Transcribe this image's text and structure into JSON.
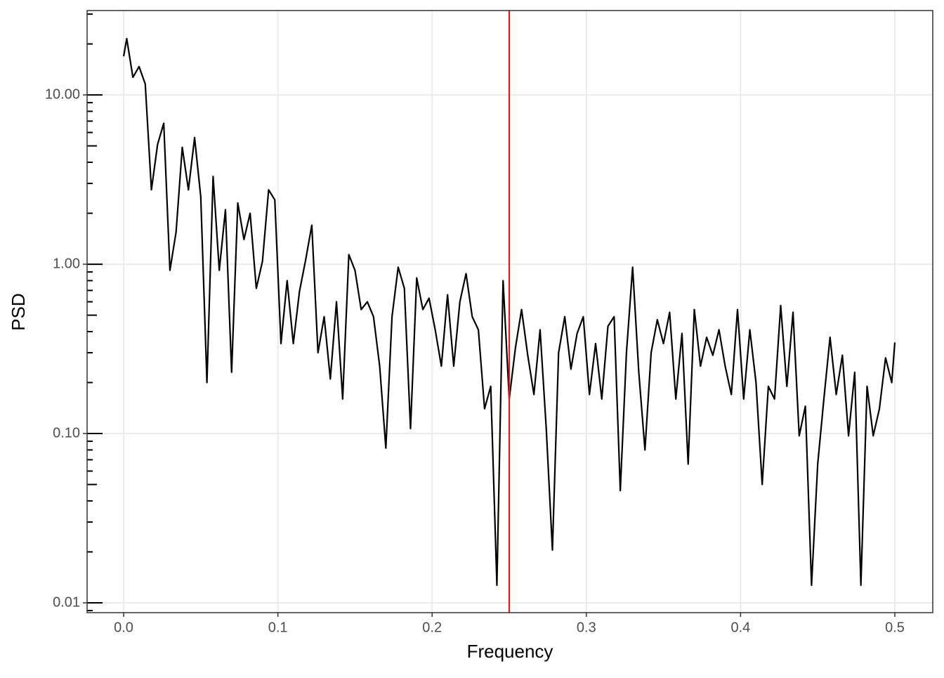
{
  "chart_data": {
    "type": "line",
    "x_label": "Frequency",
    "y_label": "PSD",
    "x": [
      0.0,
      0.002,
      0.006,
      0.01,
      0.014,
      0.018,
      0.022,
      0.026,
      0.03,
      0.034,
      0.038,
      0.042,
      0.046,
      0.05,
      0.054,
      0.058,
      0.062,
      0.066,
      0.07,
      0.074,
      0.078,
      0.082,
      0.086,
      0.09,
      0.094,
      0.098,
      0.102,
      0.106,
      0.11,
      0.114,
      0.118,
      0.122,
      0.126,
      0.13,
      0.134,
      0.138,
      0.142,
      0.146,
      0.15,
      0.154,
      0.158,
      0.162,
      0.166,
      0.17,
      0.174,
      0.178,
      0.182,
      0.186,
      0.19,
      0.194,
      0.198,
      0.202,
      0.206,
      0.21,
      0.214,
      0.218,
      0.222,
      0.226,
      0.23,
      0.234,
      0.238,
      0.242,
      0.246,
      0.25,
      0.254,
      0.258,
      0.262,
      0.266,
      0.27,
      0.274,
      0.278,
      0.282,
      0.286,
      0.29,
      0.294,
      0.298,
      0.302,
      0.306,
      0.31,
      0.314,
      0.318,
      0.322,
      0.326,
      0.33,
      0.334,
      0.338,
      0.342,
      0.346,
      0.35,
      0.354,
      0.358,
      0.362,
      0.366,
      0.37,
      0.374,
      0.378,
      0.382,
      0.386,
      0.39,
      0.394,
      0.398,
      0.402,
      0.406,
      0.41,
      0.414,
      0.418,
      0.422,
      0.426,
      0.43,
      0.434,
      0.438,
      0.442,
      0.446,
      0.45,
      0.454,
      0.458,
      0.462,
      0.466,
      0.47,
      0.474,
      0.478,
      0.482,
      0.486,
      0.49,
      0.494,
      0.498,
      0.5
    ],
    "series": [
      {
        "name": "PSD",
        "color": "#000000",
        "values": [
          16.9,
          21.5,
          12.7,
          14.7,
          11.6,
          2.75,
          5.1,
          6.8,
          0.92,
          1.55,
          4.9,
          2.75,
          5.6,
          2.5,
          0.2,
          3.3,
          0.92,
          2.1,
          0.23,
          2.3,
          1.4,
          2.0,
          0.72,
          1.04,
          2.75,
          2.4,
          0.34,
          0.8,
          0.34,
          0.69,
          1.06,
          1.7,
          0.3,
          0.49,
          0.21,
          0.6,
          0.16,
          1.14,
          0.92,
          0.54,
          0.6,
          0.49,
          0.25,
          0.082,
          0.49,
          0.96,
          0.72,
          0.107,
          0.83,
          0.54,
          0.63,
          0.41,
          0.25,
          0.66,
          0.25,
          0.6,
          0.88,
          0.49,
          0.41,
          0.14,
          0.19,
          0.0127,
          0.8,
          0.16,
          0.32,
          0.54,
          0.29,
          0.17,
          0.41,
          0.107,
          0.0205,
          0.3,
          0.49,
          0.24,
          0.39,
          0.49,
          0.17,
          0.34,
          0.16,
          0.43,
          0.49,
          0.046,
          0.3,
          0.96,
          0.23,
          0.08,
          0.3,
          0.47,
          0.34,
          0.52,
          0.16,
          0.39,
          0.066,
          0.54,
          0.25,
          0.37,
          0.29,
          0.41,
          0.25,
          0.17,
          0.54,
          0.16,
          0.41,
          0.2,
          0.05,
          0.19,
          0.16,
          0.57,
          0.19,
          0.52,
          0.097,
          0.145,
          0.0127,
          0.066,
          0.16,
          0.37,
          0.17,
          0.29,
          0.097,
          0.23,
          0.0127,
          0.19,
          0.097,
          0.14,
          0.28,
          0.2,
          0.345
        ]
      }
    ],
    "vline": 0.25,
    "vline_color": "#e41a1c",
    "xlim": [
      -0.0237,
      0.5246
    ],
    "ylim": [
      0.00875,
      31.5
    ],
    "ylog": true,
    "logticks": true,
    "grid": true,
    "xticks": [
      {
        "value": 0,
        "label": "0.0"
      },
      0.1,
      0.2,
      0.3,
      0.4,
      0.5
    ],
    "yticks": [
      {
        "value": 0.01,
        "label": "0.01"
      },
      {
        "value": 0.1,
        "label": "0.10"
      },
      {
        "value": 1,
        "label": "1.00"
      },
      {
        "value": 10,
        "label": "10.00"
      }
    ]
  }
}
